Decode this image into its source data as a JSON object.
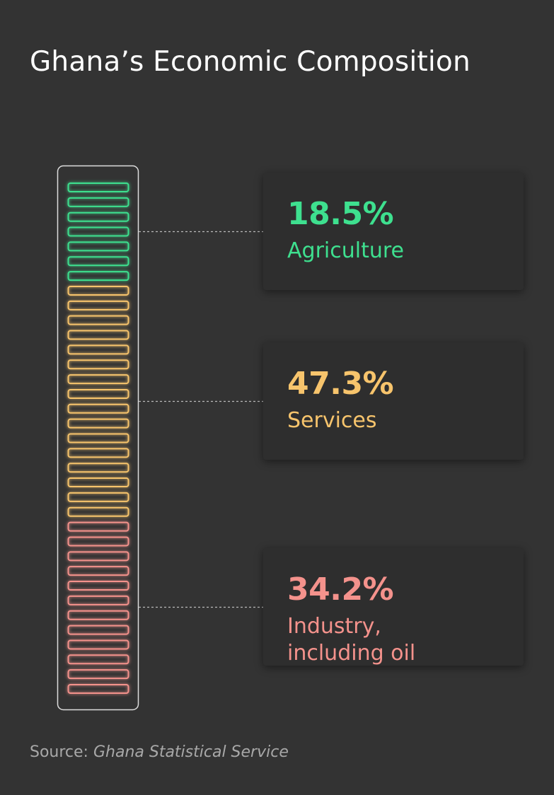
{
  "title": "Ghana’s Economic Composition",
  "chart_data": {
    "type": "stacked-bar",
    "title": "Ghana’s Economic Composition",
    "unit": "%",
    "series": [
      {
        "name": "Agriculture",
        "value": 18.5,
        "display": "18.5%",
        "color": "#3ee08f"
      },
      {
        "name": "Services",
        "value": 47.3,
        "display": "47.3%",
        "color": "#f7c46c"
      },
      {
        "name": "Industry, including oil",
        "display_label": "Industry,\nincluding oil",
        "value": 34.2,
        "display": "34.2%",
        "color": "#f4928c"
      }
    ],
    "segment_counts": [
      7,
      16,
      12
    ]
  },
  "source": {
    "prefix": "Source: ",
    "name": "Ghana Statistical Service"
  },
  "colors": {
    "background": "#333333",
    "card": "#2e2e2e",
    "outline": "#dddddd",
    "connector": "#bbbbbb"
  }
}
